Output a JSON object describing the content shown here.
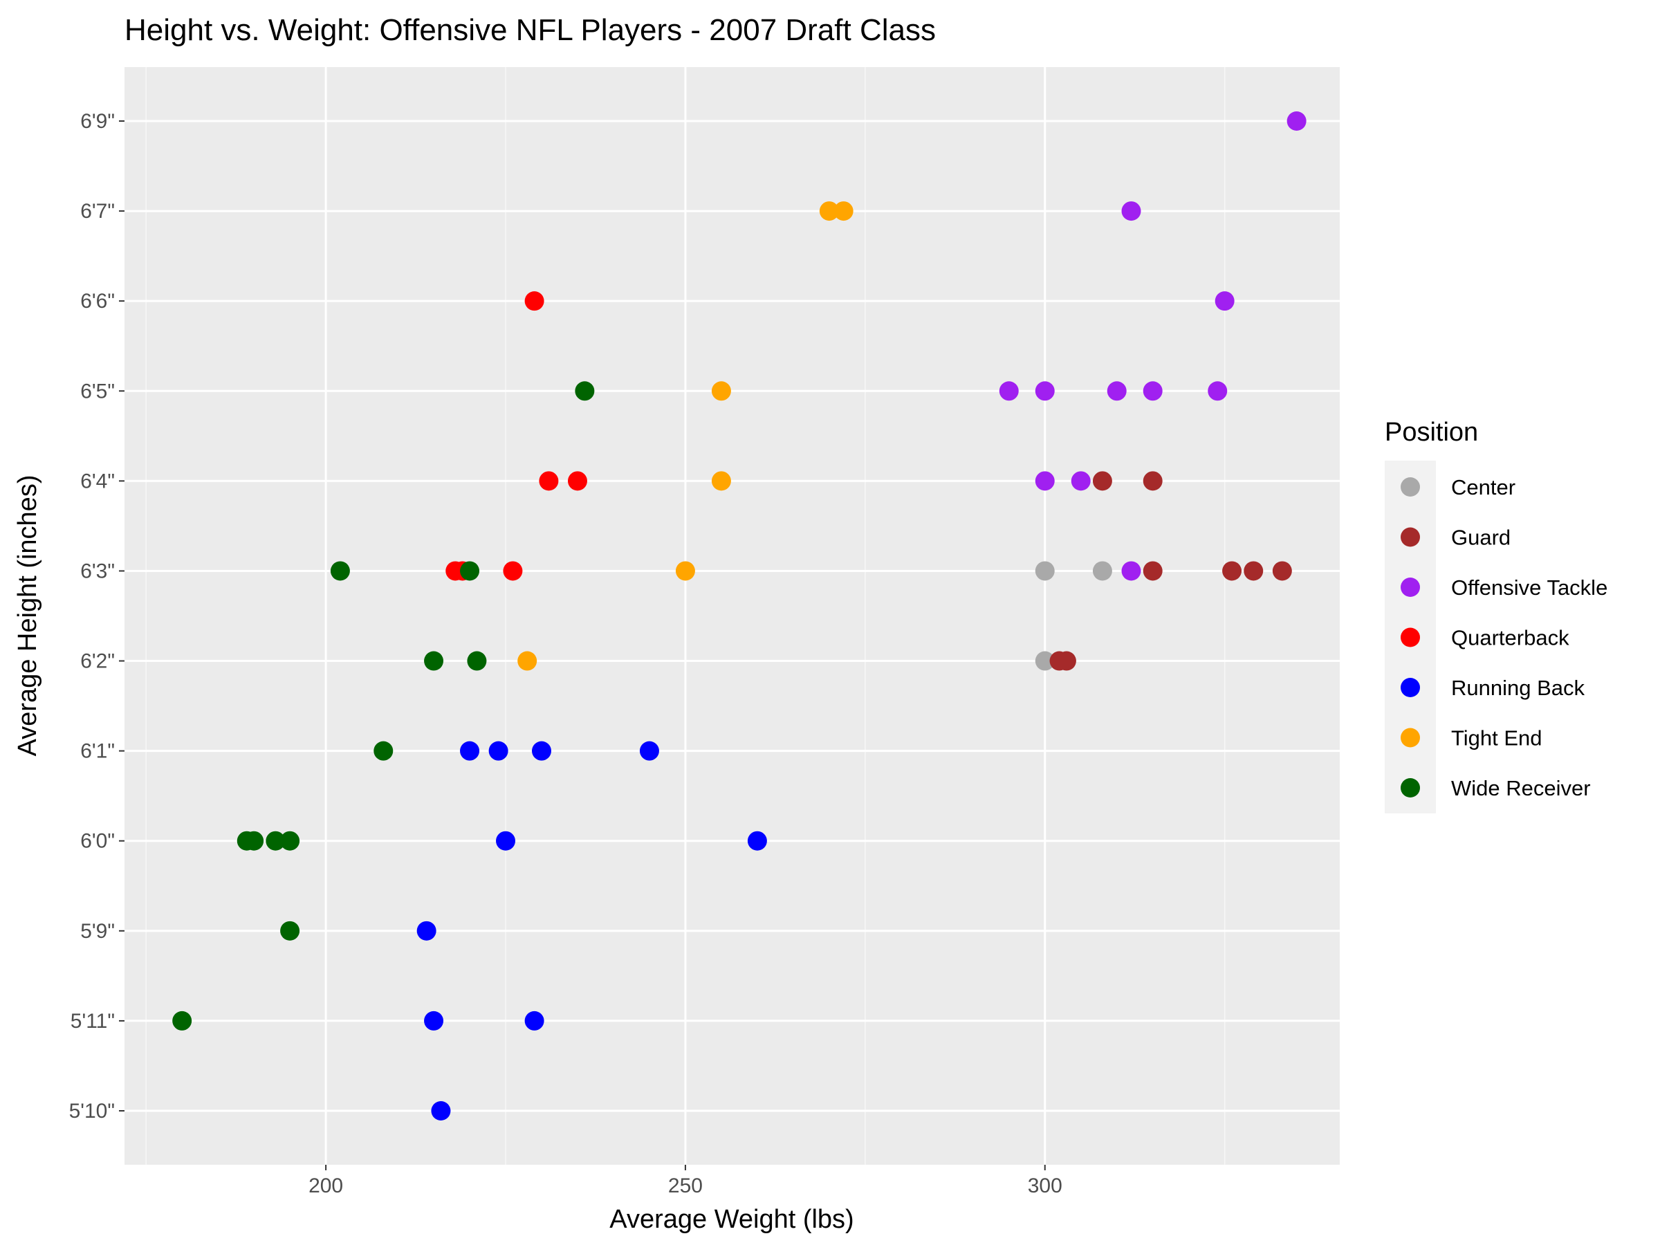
{
  "chart_data": {
    "type": "scatter",
    "title": "Height vs. Weight: Offensive NFL Players - 2007 Draft Class",
    "xlabel": "Average Weight (lbs)",
    "ylabel": "Average Height (inches)",
    "xlim": [
      172,
      341
    ],
    "x_ticks": [
      200,
      250,
      300
    ],
    "y_categories": [
      "5'10\"",
      "5'11\"",
      "5'9\"",
      "6'0\"",
      "6'1\"",
      "6'2\"",
      "6'3\"",
      "6'4\"",
      "6'5\"",
      "6'6\"",
      "6'7\"",
      "6'9\""
    ],
    "grid": true,
    "legend": {
      "title": "Position",
      "position": "right"
    },
    "series": [
      {
        "name": "Center",
        "color": "#A9A9A9",
        "points": [
          [
            300,
            "6'3\""
          ],
          [
            308,
            "6'3\""
          ],
          [
            300,
            "6'2\""
          ]
        ]
      },
      {
        "name": "Guard",
        "color": "#A52A2A",
        "points": [
          [
            308,
            "6'4\""
          ],
          [
            315,
            "6'4\""
          ],
          [
            315,
            "6'3\""
          ],
          [
            326,
            "6'3\""
          ],
          [
            329,
            "6'3\""
          ],
          [
            333,
            "6'3\""
          ],
          [
            302,
            "6'2\""
          ],
          [
            303,
            "6'2\""
          ]
        ]
      },
      {
        "name": "Offensive Tackle",
        "color": "#A020F0",
        "points": [
          [
            335,
            "6'9\""
          ],
          [
            312,
            "6'7\""
          ],
          [
            325,
            "6'6\""
          ],
          [
            295,
            "6'5\""
          ],
          [
            300,
            "6'5\""
          ],
          [
            310,
            "6'5\""
          ],
          [
            315,
            "6'5\""
          ],
          [
            324,
            "6'5\""
          ],
          [
            300,
            "6'4\""
          ],
          [
            305,
            "6'4\""
          ],
          [
            312,
            "6'3\""
          ]
        ]
      },
      {
        "name": "Quarterback",
        "color": "#FF0000",
        "points": [
          [
            229,
            "6'6\""
          ],
          [
            231,
            "6'4\""
          ],
          [
            235,
            "6'4\""
          ],
          [
            218,
            "6'3\""
          ],
          [
            219,
            "6'3\""
          ],
          [
            226,
            "6'3\""
          ]
        ]
      },
      {
        "name": "Running Back",
        "color": "#0000FF",
        "points": [
          [
            220,
            "6'1\""
          ],
          [
            224,
            "6'1\""
          ],
          [
            230,
            "6'1\""
          ],
          [
            245,
            "6'1\""
          ],
          [
            225,
            "6'0\""
          ],
          [
            260,
            "6'0\""
          ],
          [
            214,
            "5'9\""
          ],
          [
            215,
            "5'11\""
          ],
          [
            229,
            "5'11\""
          ],
          [
            216,
            "5'10\""
          ]
        ]
      },
      {
        "name": "Tight End",
        "color": "#FFA500",
        "points": [
          [
            270,
            "6'7\""
          ],
          [
            272,
            "6'7\""
          ],
          [
            255,
            "6'5\""
          ],
          [
            255,
            "6'4\""
          ],
          [
            250,
            "6'3\""
          ],
          [
            228,
            "6'2\""
          ]
        ]
      },
      {
        "name": "Wide Receiver",
        "color": "#006400",
        "points": [
          [
            236,
            "6'5\""
          ],
          [
            202,
            "6'3\""
          ],
          [
            220,
            "6'3\""
          ],
          [
            215,
            "6'2\""
          ],
          [
            221,
            "6'2\""
          ],
          [
            208,
            "6'1\""
          ],
          [
            189,
            "6'0\""
          ],
          [
            190,
            "6'0\""
          ],
          [
            193,
            "6'0\""
          ],
          [
            195,
            "6'0\""
          ],
          [
            195,
            "5'9\""
          ],
          [
            180,
            "5'11\""
          ]
        ]
      }
    ]
  }
}
